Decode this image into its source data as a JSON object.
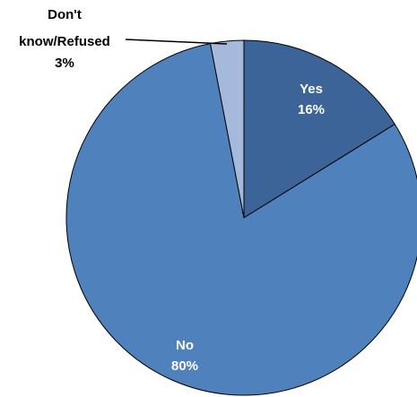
{
  "chart_data": {
    "type": "pie",
    "slices": [
      {
        "label": "Yes",
        "value": 16,
        "display": "16%",
        "color": "#3D6499"
      },
      {
        "label": "No",
        "value": 80,
        "display": "80%",
        "color": "#4F81BD"
      },
      {
        "label": "Don't know/Refused",
        "value": 3,
        "display": "3%",
        "color": "#A5B9DC"
      }
    ],
    "label_colors": {
      "inside": "#FFFFFF",
      "outside": "#000000"
    },
    "outside_label_lines": [
      "Don't",
      "know/Refused",
      "3%"
    ],
    "edge_color": "#000000",
    "start_angle": "12 o'clock",
    "direction": "clockwise"
  }
}
